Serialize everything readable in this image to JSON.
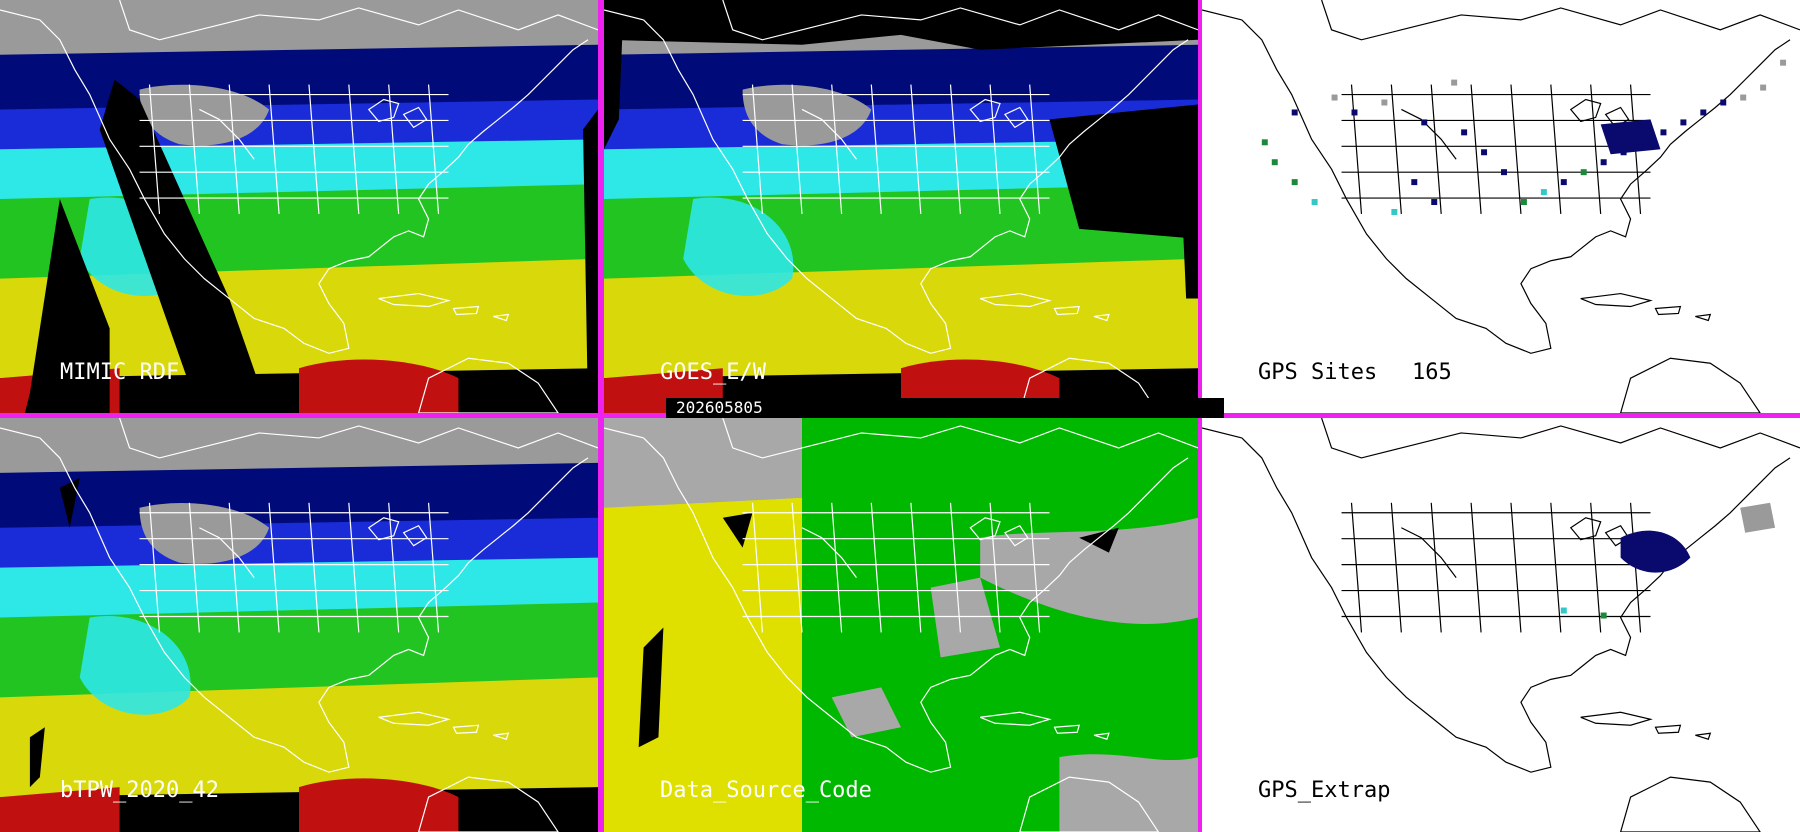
{
  "panels": [
    {
      "id": "mimic",
      "label": "MIMIC RDF",
      "style": "tpw"
    },
    {
      "id": "goes",
      "label": "GOES_E/W",
      "style": "tpw"
    },
    {
      "id": "gps_sites",
      "label": "GPS Sites",
      "count": "165",
      "style": "outline"
    },
    {
      "id": "btpw",
      "label": "bTPW_2020_42",
      "style": "tpw"
    },
    {
      "id": "dsc",
      "label": "Data_Source_Code",
      "style": "source"
    },
    {
      "id": "gps_extrap",
      "label": "GPS_Extrap",
      "style": "outline"
    }
  ],
  "timestamp": "202605805",
  "colors": {
    "separator": "#ee22ee",
    "tpw_dry": "#9a9a9a",
    "tpw_low": "#000a78",
    "tpw_mid_low": "#1a2bd8",
    "tpw_mid": "#2ee8e8",
    "tpw_mid_high": "#22c422",
    "tpw_high": "#d8d80a",
    "tpw_very_high": "#c01010",
    "source_gray": "#a8a8a8",
    "source_green": "#00b800",
    "source_yellow": "#e0e000",
    "gps_navy": "#0a0a6e",
    "gps_green": "#1a8a3a",
    "gps_cyan": "#30c8c8",
    "gps_gray": "#9a9a9a"
  }
}
